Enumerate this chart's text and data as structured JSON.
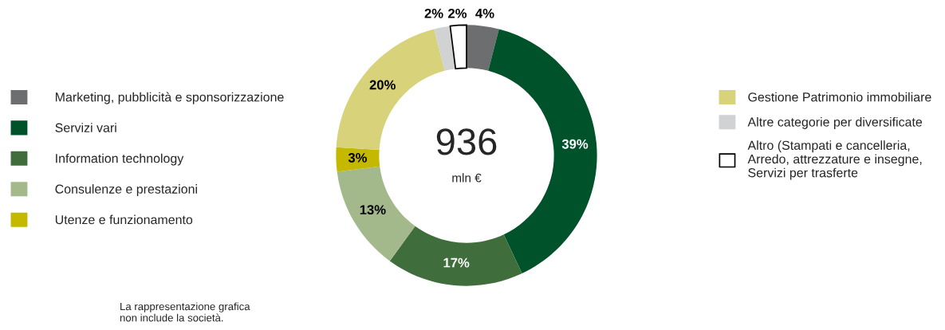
{
  "chart_data": {
    "type": "donut",
    "categories": [
      "Marketing, pubblicità e sponsorizzazione",
      "Servizi vari",
      "Information technology",
      "Consulenze e prestazioni",
      "Utenze e funzionamento",
      "Gestione Patrimonio immobiliare",
      "Altre categorie per diversificate",
      "Altro (Stampati e cancelleria,\nArredo, attrezzature e insegne,\nServizi per trasferte"
    ],
    "values": [
      4,
      39,
      17,
      13,
      3,
      20,
      2,
      2
    ],
    "value_labels": [
      "4%",
      "39%",
      "17%",
      "13%",
      "3%",
      "20%",
      "2%",
      "2%"
    ],
    "colors": [
      "#6d6e70",
      "#00522a",
      "#3f6e3c",
      "#a3b98c",
      "#c4b900",
      "#d8d27a",
      "#d0d2d3",
      "#ffffff"
    ],
    "legend": "left",
    "annotations": [
      "936",
      "mln €",
      "La rappresentazione grafica\nnon include la società."
    ]
  }
}
